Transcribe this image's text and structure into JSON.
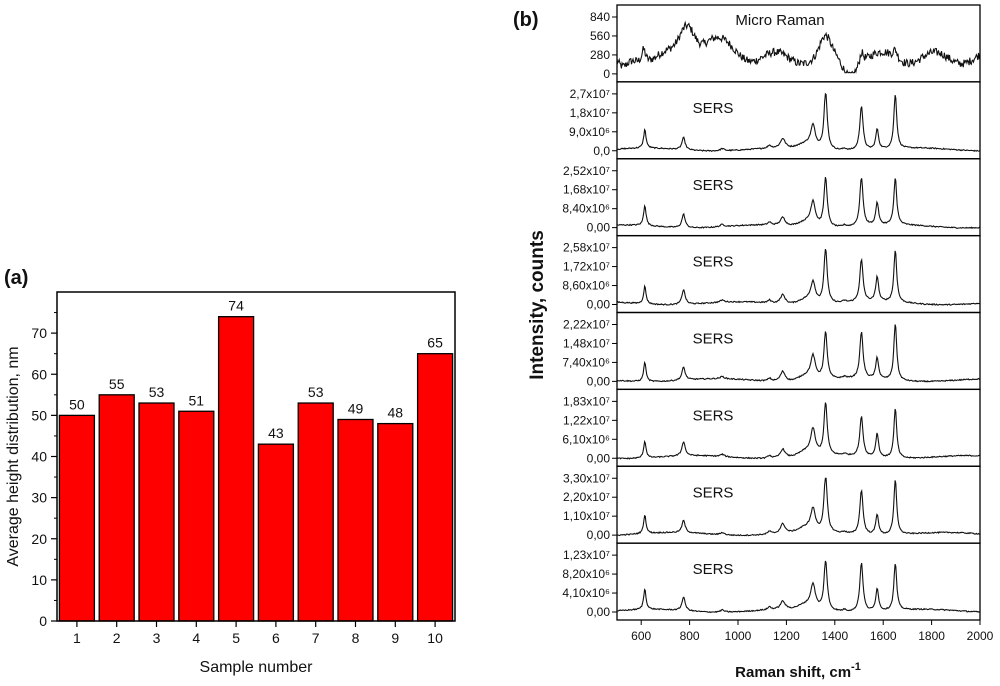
{
  "panel_a_label": "(a)",
  "panel_b_label": "(b)",
  "chart_data": [
    {
      "type": "bar",
      "panel": "(a)",
      "categories": [
        "1",
        "2",
        "3",
        "4",
        "5",
        "6",
        "7",
        "8",
        "9",
        "10"
      ],
      "values": [
        50,
        55,
        53,
        51,
        74,
        43,
        53,
        49,
        48,
        65
      ],
      "data_labels": [
        "50",
        "55",
        "53",
        "51",
        "74",
        "43",
        "53",
        "49",
        "48",
        "65"
      ],
      "xlabel": "Sample number",
      "ylabel": "Average height distribution, nm",
      "ylim": [
        0,
        80
      ],
      "yticks": [
        "0",
        "10",
        "20",
        "30",
        "40",
        "50",
        "60",
        "70"
      ],
      "bar_color": "#ff0000",
      "grid": false
    },
    {
      "type": "line",
      "panel": "(b)",
      "xlabel": "Raman shift, cm",
      "xlabel_sup": "-1",
      "ylabel": "Intensity, counts",
      "xlim": [
        500,
        2000
      ],
      "xticks": [
        "600",
        "800",
        "1000",
        "1200",
        "1400",
        "1600",
        "1800",
        "2000"
      ],
      "line_color": "#111111",
      "subplots": [
        {
          "label": "Micro Raman",
          "yticks": [
            "0",
            "280",
            "560",
            "840"
          ]
        },
        {
          "label": "SERS",
          "yticks": [
            "0,0",
            "9,0x10⁶",
            "1,8x10⁷",
            "2,7x10⁷"
          ]
        },
        {
          "label": "SERS",
          "yticks": [
            "0,00",
            "8,40x10⁶",
            "1,68x10⁷",
            "2,52x10⁷"
          ]
        },
        {
          "label": "SERS",
          "yticks": [
            "0,00",
            "8,60x10⁶",
            "1,72x10⁷",
            "2,58x10⁷"
          ]
        },
        {
          "label": "SERS",
          "yticks": [
            "0,00",
            "7,40x10⁶",
            "1,48x10⁷",
            "2,22x10⁷"
          ]
        },
        {
          "label": "SERS",
          "yticks": [
            "0,00",
            "6,10x10⁶",
            "1,22x10⁷",
            "1,83x10⁷"
          ]
        },
        {
          "label": "SERS",
          "yticks": [
            "0,00",
            "1,10x10⁷",
            "2,20x10⁷",
            "3,30x10⁷"
          ]
        },
        {
          "label": "SERS",
          "yticks": [
            "0,00",
            "4,10x10⁶",
            "8,20x10⁶",
            "1,23x10⁷"
          ]
        }
      ],
      "sers_peaks_cm1": [
        615,
        775,
        1185,
        1310,
        1362,
        1510,
        1575,
        1650
      ]
    }
  ]
}
